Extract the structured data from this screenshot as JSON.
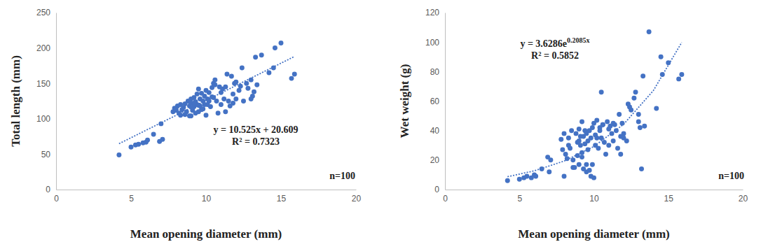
{
  "chart_data": [
    {
      "type": "scatter",
      "x_label": "Mean opening diameter (mm)",
      "y_label": "Total length (mm)",
      "color": "#4472c4",
      "marker": "circle",
      "xlim": [
        0,
        20
      ],
      "xticks": [
        0,
        5,
        10,
        15,
        20
      ],
      "ylim": [
        0,
        250
      ],
      "yticks": [
        0,
        50,
        100,
        150,
        200,
        250
      ],
      "grid": false,
      "x": [
        4.2,
        5.0,
        5.3,
        5.5,
        5.8,
        6.0,
        6.1,
        6.5,
        6.9,
        7.1,
        7.0,
        7.8,
        7.9,
        8.0,
        8.1,
        8.3,
        8.3,
        8.5,
        8.6,
        8.7,
        8.8,
        8.9,
        8.9,
        9.0,
        9.0,
        9.1,
        9.2,
        9.2,
        9.3,
        9.3,
        9.4,
        9.4,
        9.5,
        9.5,
        9.6,
        9.6,
        9.7,
        9.8,
        9.8,
        9.9,
        10.0,
        10.0,
        10.1,
        10.1,
        10.2,
        10.3,
        10.4,
        10.5,
        10.5,
        10.6,
        10.7,
        10.8,
        10.9,
        11.0,
        11.1,
        11.2,
        11.3,
        11.4,
        11.5,
        11.6,
        11.7,
        11.8,
        11.9,
        12.0,
        12.2,
        12.4,
        12.5,
        12.7,
        12.8,
        13.0,
        13.1,
        13.2,
        13.3,
        13.4,
        13.7,
        14.2,
        14.5,
        14.6,
        15.0,
        15.7,
        15.9,
        8.2,
        8.4,
        8.6,
        9.0,
        9.2,
        9.5,
        9.7,
        10.2,
        10.4,
        11.0,
        11.3,
        12.0,
        12.3,
        13.0,
        8.0,
        9.9,
        10.6,
        11.8,
        9.1
      ],
      "values": [
        49,
        60,
        63,
        64,
        66,
        67,
        70,
        78,
        68,
        71,
        93,
        110,
        115,
        112,
        118,
        105,
        120,
        116,
        121,
        110,
        125,
        104,
        118,
        104,
        122,
        112,
        130,
        117,
        108,
        124,
        135,
        120,
        142,
        110,
        128,
        118,
        136,
        125,
        114,
        132,
        105,
        140,
        120,
        128,
        137,
        117,
        144,
        150,
        130,
        155,
        125,
        108,
        145,
        120,
        142,
        128,
        110,
        163,
        125,
        118,
        160,
        135,
        150,
        128,
        140,
        172,
        125,
        150,
        143,
        155,
        132,
        138,
        187,
        148,
        190,
        165,
        172,
        200,
        207,
        157,
        163,
        108,
        113,
        106,
        128,
        122,
        119,
        113,
        125,
        131,
        137,
        145,
        152,
        146,
        128,
        113,
        120,
        148,
        122,
        115
      ],
      "trendline": {
        "line_style": "dotted",
        "x": [
          4.2,
          15.9
        ],
        "values": [
          64.8,
          188.0
        ]
      },
      "annotations": [
        "y = 10.525x + 20.609",
        "R² = 0.7323",
        "n=100"
      ]
    },
    {
      "type": "scatter",
      "x_label": "Mean opening diameter (mm)",
      "y_label": "Wet weight (g)",
      "color": "#4472c4",
      "marker": "circle",
      "xlim": [
        0,
        20
      ],
      "xticks": [
        0,
        5,
        10,
        15,
        20
      ],
      "ylim": [
        0,
        120
      ],
      "yticks": [
        0,
        20,
        40,
        60,
        80,
        100,
        120
      ],
      "grid": false,
      "x": [
        4.2,
        5.0,
        5.3,
        5.5,
        5.8,
        6.0,
        6.1,
        6.5,
        6.9,
        7.1,
        7.0,
        7.8,
        7.9,
        8.0,
        8.1,
        8.3,
        8.3,
        8.5,
        8.6,
        8.7,
        8.8,
        8.9,
        8.9,
        9.0,
        9.0,
        9.1,
        9.2,
        9.2,
        9.3,
        9.3,
        9.4,
        9.4,
        9.5,
        9.5,
        9.6,
        9.6,
        9.7,
        9.8,
        9.8,
        9.9,
        10.0,
        10.0,
        10.1,
        10.1,
        10.2,
        10.3,
        10.4,
        10.5,
        10.5,
        10.6,
        10.7,
        10.8,
        10.9,
        11.0,
        11.1,
        11.2,
        11.3,
        11.4,
        11.5,
        11.6,
        11.7,
        11.8,
        11.9,
        12.0,
        12.2,
        12.4,
        12.5,
        12.7,
        12.8,
        13.0,
        13.1,
        13.2,
        13.3,
        13.4,
        13.7,
        14.2,
        14.5,
        14.6,
        15.0,
        15.7,
        15.9,
        8.2,
        8.4,
        8.6,
        9.0,
        9.2,
        9.5,
        9.7,
        10.2,
        10.4,
        11.0,
        11.3,
        12.0,
        12.3,
        13.0,
        8.0,
        9.9,
        10.6,
        11.8,
        9.1
      ],
      "values": [
        6,
        7,
        8,
        9,
        8,
        10,
        9,
        14,
        22,
        20,
        12,
        34,
        27,
        38,
        24,
        35,
        30,
        40,
        20,
        15,
        38,
        23,
        32,
        17,
        41,
        30,
        46,
        25,
        14,
        36,
        40,
        31,
        38,
        12,
        33,
        27,
        40,
        35,
        9,
        42,
        8,
        45,
        30,
        37,
        47,
        28,
        40,
        66,
        35,
        44,
        32,
        24,
        46,
        30,
        43,
        38,
        33,
        44,
        40,
        28,
        51,
        36,
        45,
        38,
        33,
        56,
        54,
        62,
        66,
        46,
        42,
        14,
        77,
        43,
        107,
        55,
        90,
        78,
        86,
        75,
        78,
        21,
        28,
        15,
        33,
        22,
        17,
        13,
        35,
        42,
        41,
        45,
        35,
        58,
        51,
        9,
        17,
        44,
        24,
        36
      ],
      "trendline": {
        "line_style": "dotted",
        "x": [
          4.2,
          6,
          8,
          10,
          12,
          14,
          15.9
        ],
        "values": [
          8.7,
          12.7,
          19.3,
          29.2,
          44.3,
          67.2,
          99.8
        ]
      },
      "annotations": [
        {
          "text": "y = 3.6286e",
          "sup": "0.2085x"
        },
        "R² = 0.5852",
        "n=100"
      ]
    }
  ]
}
